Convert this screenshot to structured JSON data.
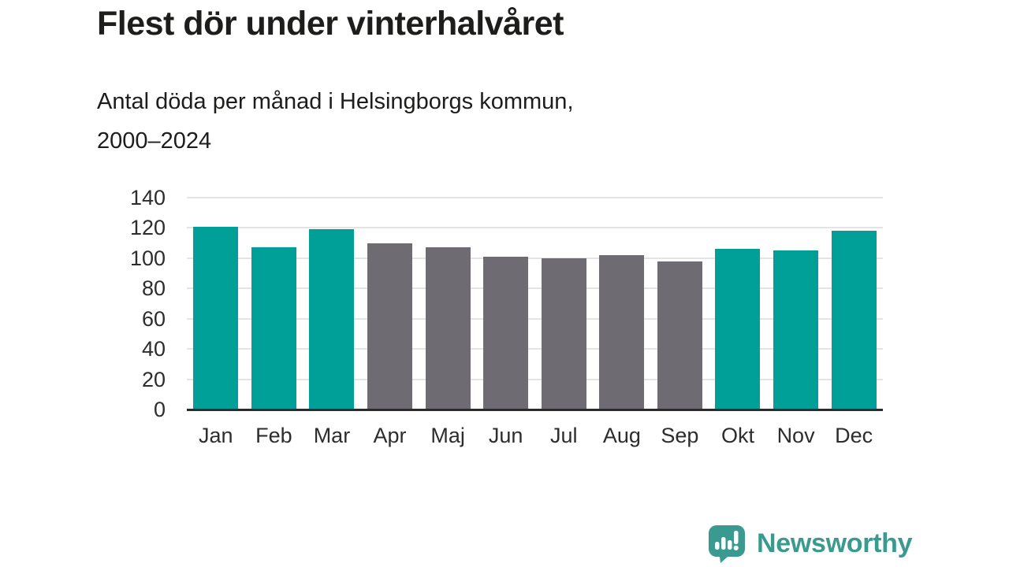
{
  "header": {
    "title": "Flest dör under vinterhalvåret",
    "subtitle_line1": "Antal döda per månad i Helsingborgs kommun,",
    "subtitle_line2": "2000–2024"
  },
  "chart_data": {
    "type": "bar",
    "title": "Flest dör under vinterhalvåret",
    "subtitle": "Antal döda per månad i Helsingborgs kommun, 2000–2024",
    "categories": [
      "Jan",
      "Feb",
      "Mar",
      "Apr",
      "Maj",
      "Jun",
      "Jul",
      "Aug",
      "Sep",
      "Okt",
      "Nov",
      "Dec"
    ],
    "values": [
      121,
      107,
      119,
      110,
      107,
      101,
      100,
      102,
      98,
      106,
      105,
      118
    ],
    "bar_colors": [
      "#00a099",
      "#00a099",
      "#00a099",
      "#6e6b72",
      "#6e6b72",
      "#6e6b72",
      "#6e6b72",
      "#6e6b72",
      "#6e6b72",
      "#00a099",
      "#00a099",
      "#00a099"
    ],
    "xlabel": "",
    "ylabel": "",
    "ylim": [
      0,
      140
    ],
    "yticks": [
      0,
      20,
      40,
      60,
      80,
      100,
      120,
      140
    ],
    "grid": true,
    "legend": "none"
  },
  "colors": {
    "highlight_teal": "#00a099",
    "muted_gray": "#6e6b72",
    "gridline": "#e4e4e4",
    "axis": "#2b2b2b",
    "text": "#1d1d1b",
    "brand_teal": "#3a9a90"
  },
  "footer": {
    "brand": "Newsworthy",
    "logo_icon": "newsworthy-speech-bubble-bar-chart-icon"
  }
}
